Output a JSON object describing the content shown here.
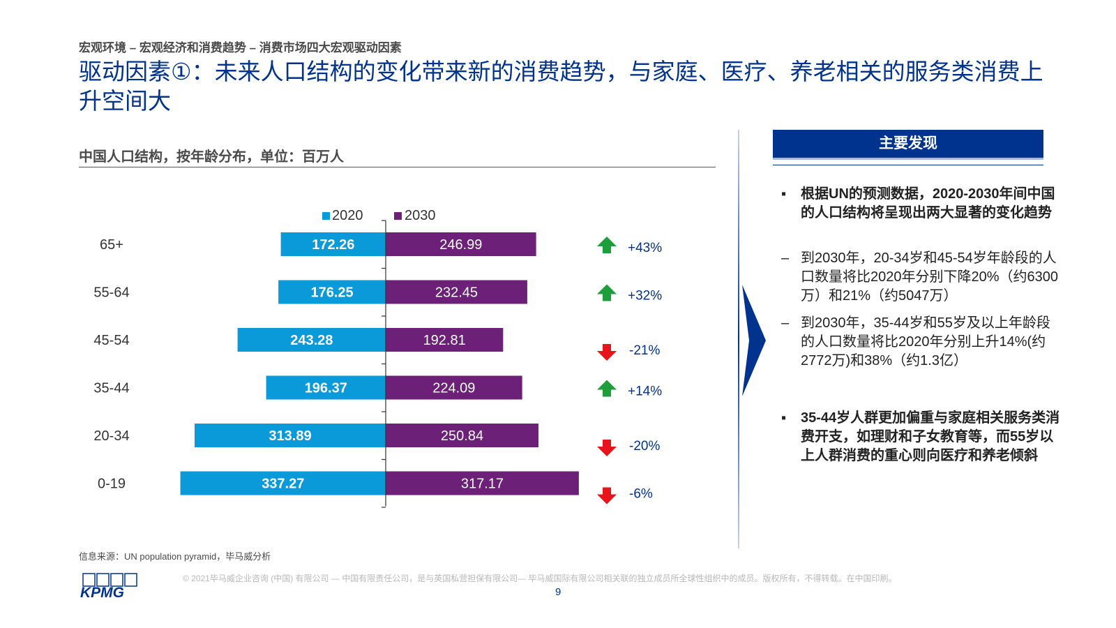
{
  "header": {
    "breadcrumb": "宏观环境 – 宏观经济和消费趋势 – 消费市场四大宏观驱动因素",
    "title": "驱动因素①：未来人口结构的变化带来新的消费趋势，与家庭、医疗、养老相关的服务类消费上升空间大"
  },
  "chart_section": {
    "subtitle": "中国人口结构，按年龄分布，单位：百万人"
  },
  "chart_data": {
    "type": "bar",
    "orientation": "horizontal-diverging",
    "title": "中国人口结构，按年龄分布，单位：百万人",
    "categories": [
      "65+",
      "55-64",
      "45-54",
      "35-44",
      "20-34",
      "0-19"
    ],
    "series": [
      {
        "name": "2020",
        "color": "#0A9AD9",
        "values": [
          172.26,
          176.25,
          243.28,
          196.37,
          313.89,
          337.27
        ],
        "labels": [
          "172.26",
          "176.25",
          "243.28",
          "196.37",
          "313.89",
          "337.27"
        ]
      },
      {
        "name": "2030",
        "color": "#6D2077",
        "values": [
          246.99,
          232.45,
          192.81,
          224.09,
          250.84,
          317.17
        ],
        "labels": [
          "246.99",
          "232.45",
          "192.81",
          "224.09",
          "250.84",
          "317.17"
        ]
      }
    ],
    "changes": [
      {
        "label": "+43%",
        "direction": "up"
      },
      {
        "label": "+32%",
        "direction": "up"
      },
      {
        "label": "-21%",
        "direction": "down"
      },
      {
        "label": "+14%",
        "direction": "up"
      },
      {
        "label": "-20%",
        "direction": "down"
      },
      {
        "label": "-6%",
        "direction": "down"
      }
    ],
    "colors": {
      "up": "#1E9E3A",
      "down": "#E8141C"
    },
    "legend": {
      "position": "top-center"
    }
  },
  "findings": {
    "header": "主要发现",
    "items": [
      {
        "marker": "▪",
        "text": "根据UN的预测数据，2020-2030年间中国的人口结构将呈现出两大显著的变化趋势"
      },
      {
        "marker": "–",
        "text": "到2030年，20-34岁和45-54岁年龄段的人口数量将比2020年分别下降20%（约6300万）和21%（约5047万）"
      },
      {
        "marker": "–",
        "text": "到2030年，35-44岁和55岁及以上年龄段的人口数量将比2020年分别上升14%(约2772万)和38%（约1.3亿）"
      },
      {
        "marker": "▪",
        "text": "35-44岁人群更加偏重与家庭相关服务类消费开支，如理财和子女教育等，而55岁以上人群消费的重心则向医疗和养老倾斜"
      }
    ]
  },
  "footer": {
    "source": "信息来源：UN population pyramid，毕马威分析",
    "copyright": "© 2021毕马威企业咨询 (中国) 有限公司 — 中国有限责任公司，是与英国私营担保有限公司— 毕马威国际有限公司相关联的独立成员所全球性组织中的成员。版权所有，不得转载。在中国印刷。",
    "page_number": "9",
    "logo_text": "KPMG"
  }
}
